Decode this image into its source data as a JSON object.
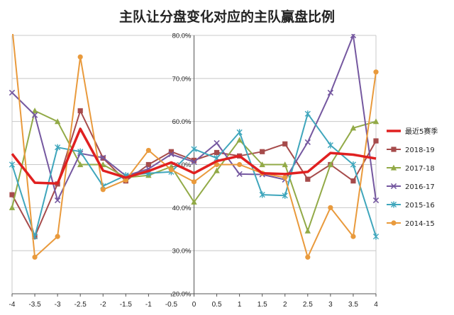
{
  "chart_data": {
    "type": "line",
    "title": "主队让分盘变化对应的主队赢盘比例",
    "xlabel": "",
    "ylabel": "",
    "x": [
      "-4",
      "-3.5",
      "-3",
      "-2.5",
      "-2",
      "-1.5",
      "-1",
      "-0.5",
      "0",
      "0.5",
      "1",
      "1.5",
      "2",
      "2.5",
      "3",
      "3.5",
      "4"
    ],
    "y_ticks": [
      "20.0%",
      "30.0%",
      "40.0%",
      "50.0%",
      "60.0%",
      "70.0%",
      "80.0%"
    ],
    "ylim": [
      20,
      80
    ],
    "grid": true,
    "legend_position": "right",
    "series": [
      {
        "name": "最近5赛季",
        "color": "#e02020",
        "marker": "none",
        "values": [
          52.5,
          45.8,
          45.6,
          58.3,
          48.6,
          47.0,
          48.5,
          50.5,
          48.0,
          50.8,
          52.0,
          48.0,
          47.8,
          48.3,
          52.7,
          52.3,
          51.4
        ]
      },
      {
        "name": "2018-19",
        "color": "#a64b4b",
        "marker": "square",
        "values": [
          43.0,
          33.3,
          45.5,
          62.5,
          51.5,
          46.2,
          50.0,
          53.0,
          51.0,
          52.8,
          52.0,
          53.0,
          54.8,
          46.6,
          50.0,
          46.2,
          55.5
        ]
      },
      {
        "name": "2017-18",
        "color": "#92aa47",
        "marker": "triangle",
        "values": [
          40.0,
          62.5,
          60.0,
          50.0,
          50.0,
          47.0,
          47.5,
          49.5,
          41.3,
          48.6,
          55.7,
          50.0,
          50.0,
          34.6,
          50.0,
          58.5,
          60.0
        ]
      },
      {
        "name": "2016-17",
        "color": "#7558a0",
        "marker": "x",
        "values": [
          66.7,
          61.5,
          41.7,
          52.6,
          51.6,
          47.4,
          49.0,
          52.4,
          50.6,
          55.0,
          47.8,
          47.7,
          46.5,
          55.2,
          66.7,
          80.0,
          41.7
        ]
      },
      {
        "name": "2015-16",
        "color": "#3fa6bc",
        "marker": "star",
        "values": [
          50.0,
          33.3,
          54.0,
          53.0,
          45.0,
          47.5,
          48.0,
          48.3,
          53.6,
          51.5,
          57.5,
          43.0,
          42.8,
          61.8,
          54.5,
          50.0,
          33.3
        ]
      },
      {
        "name": "2014-15",
        "color": "#e99a3c",
        "marker": "circle",
        "values": [
          82.0,
          28.5,
          33.3,
          75.0,
          44.2,
          46.4,
          53.3,
          48.8,
          46.0,
          50.0,
          50.0,
          48.0,
          47.0,
          28.5,
          40.0,
          33.3,
          71.5
        ]
      }
    ]
  }
}
